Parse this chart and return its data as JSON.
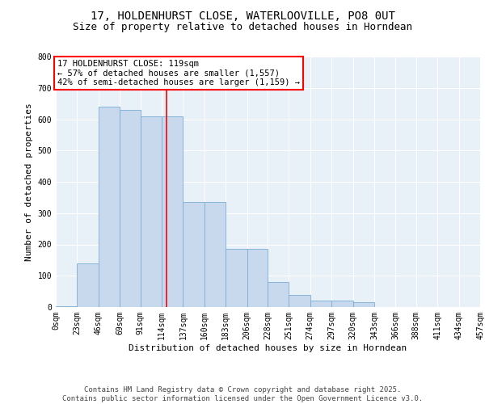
{
  "title_line1": "17, HOLDENHURST CLOSE, WATERLOOVILLE, PO8 0UT",
  "title_line2": "Size of property relative to detached houses in Horndean",
  "xlabel": "Distribution of detached houses by size in Horndean",
  "ylabel": "Number of detached properties",
  "bar_color": "#c8d9ee",
  "bar_edge_color": "#7aadd4",
  "bins": [
    "0sqm",
    "23sqm",
    "46sqm",
    "69sqm",
    "91sqm",
    "114sqm",
    "137sqm",
    "160sqm",
    "183sqm",
    "206sqm",
    "228sqm",
    "251sqm",
    "274sqm",
    "297sqm",
    "320sqm",
    "343sqm",
    "366sqm",
    "388sqm",
    "411sqm",
    "434sqm",
    "457sqm"
  ],
  "bin_edges": [
    0,
    23,
    46,
    69,
    91,
    114,
    137,
    160,
    183,
    206,
    228,
    251,
    274,
    297,
    320,
    343,
    366,
    388,
    411,
    434,
    457
  ],
  "values": [
    2,
    140,
    640,
    630,
    610,
    610,
    335,
    335,
    185,
    185,
    80,
    40,
    20,
    20,
    15,
    0,
    0,
    0,
    0,
    0
  ],
  "vline_x": 119,
  "annotation_text": "17 HOLDENHURST CLOSE: 119sqm\n← 57% of detached houses are smaller (1,557)\n42% of semi-detached houses are larger (1,159) →",
  "annotation_box_color": "white",
  "annotation_box_edge_color": "red",
  "vline_color": "red",
  "ylim": [
    0,
    800
  ],
  "yticks": [
    0,
    100,
    200,
    300,
    400,
    500,
    600,
    700,
    800
  ],
  "background_color": "#e8f0f8",
  "footer_text": "Contains HM Land Registry data © Crown copyright and database right 2025.\nContains public sector information licensed under the Open Government Licence v3.0.",
  "title_fontsize": 10,
  "subtitle_fontsize": 9,
  "xlabel_fontsize": 8,
  "ylabel_fontsize": 8,
  "tick_fontsize": 7,
  "annotation_fontsize": 7.5,
  "footer_fontsize": 6.5
}
